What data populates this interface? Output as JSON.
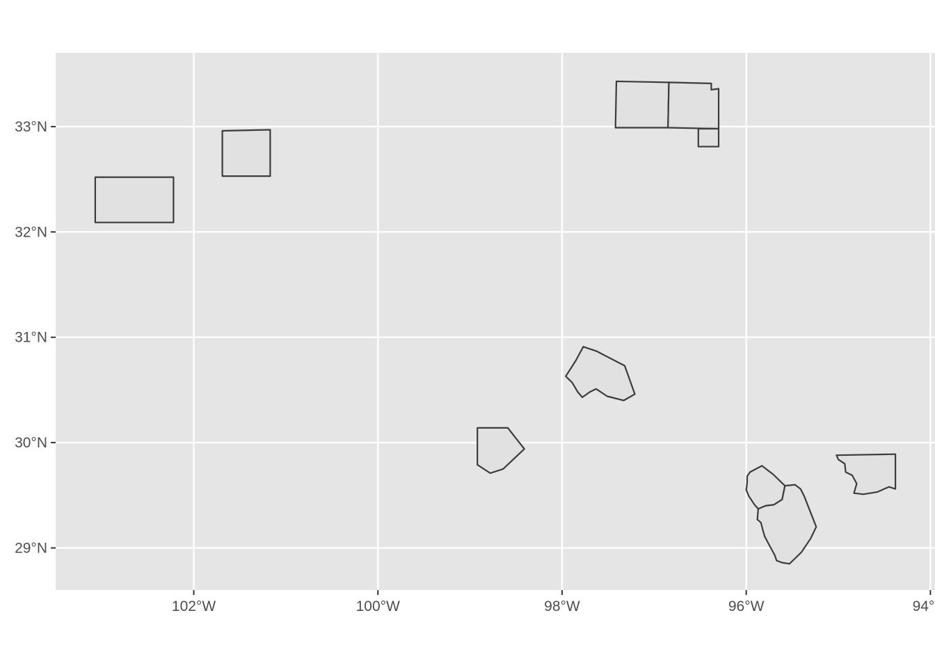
{
  "chart_data": {
    "type": "map",
    "title": "",
    "xlabel": "",
    "ylabel": "",
    "xlim": [
      -103.5,
      -93.95
    ],
    "ylim": [
      28.6,
      33.7
    ],
    "grid": true,
    "x_ticks": [
      {
        "value": -102,
        "label": "102°W"
      },
      {
        "value": -100,
        "label": "100°W"
      },
      {
        "value": -98,
        "label": "98°W"
      },
      {
        "value": -96,
        "label": "96°W"
      },
      {
        "value": -94,
        "label": "94°W"
      }
    ],
    "y_ticks": [
      {
        "value": 33,
        "label": "33°N"
      },
      {
        "value": 32,
        "label": "32°N"
      },
      {
        "value": 31,
        "label": "31°N"
      },
      {
        "value": 30,
        "label": "30°N"
      },
      {
        "value": 29,
        "label": "29°N"
      }
    ],
    "colors": {
      "fill": "#e1e1e1",
      "outline": "#3c3c3c",
      "panel": "#e5e5e5",
      "grid": "#ffffff"
    },
    "regions": [
      {
        "coords": [
          [
            -103.07,
            32.52
          ],
          [
            -102.22,
            32.52
          ],
          [
            -102.22,
            32.09
          ],
          [
            -103.07,
            32.09
          ]
        ]
      },
      {
        "coords": [
          [
            -101.69,
            32.96
          ],
          [
            -101.17,
            32.97
          ],
          [
            -101.17,
            32.53
          ],
          [
            -101.69,
            32.53
          ]
        ]
      },
      {
        "coords": [
          [
            -97.41,
            33.43
          ],
          [
            -96.84,
            33.42
          ],
          [
            -96.85,
            32.99
          ],
          [
            -97.42,
            32.99
          ]
        ]
      },
      {
        "coords": [
          [
            -96.84,
            33.42
          ],
          [
            -96.38,
            33.41
          ],
          [
            -96.38,
            33.35
          ],
          [
            -96.3,
            33.36
          ],
          [
            -96.3,
            32.98
          ],
          [
            -96.85,
            32.99
          ]
        ]
      },
      {
        "coords": [
          [
            -96.52,
            32.98
          ],
          [
            -96.3,
            32.98
          ],
          [
            -96.3,
            32.81
          ],
          [
            -96.52,
            32.81
          ]
        ]
      },
      {
        "coords": [
          [
            -97.96,
            30.63
          ],
          [
            -97.85,
            30.78
          ],
          [
            -97.77,
            30.91
          ],
          [
            -97.63,
            30.87
          ],
          [
            -97.32,
            30.73
          ],
          [
            -97.21,
            30.46
          ],
          [
            -97.33,
            30.4
          ],
          [
            -97.42,
            30.42
          ],
          [
            -97.51,
            30.44
          ],
          [
            -97.63,
            30.51
          ],
          [
            -97.7,
            30.48
          ],
          [
            -97.78,
            30.43
          ],
          [
            -97.83,
            30.48
          ],
          [
            -97.89,
            30.57
          ],
          [
            -97.95,
            30.62
          ]
        ]
      },
      {
        "coords": [
          [
            -98.92,
            30.14
          ],
          [
            -98.59,
            30.14
          ],
          [
            -98.41,
            29.94
          ],
          [
            -98.64,
            29.75
          ],
          [
            -98.78,
            29.71
          ],
          [
            -98.92,
            29.79
          ]
        ]
      },
      {
        "coords": [
          [
            -95.96,
            29.72
          ],
          [
            -95.83,
            29.78
          ],
          [
            -95.71,
            29.7
          ],
          [
            -95.58,
            29.59
          ],
          [
            -95.61,
            29.46
          ],
          [
            -95.7,
            29.41
          ],
          [
            -95.79,
            29.4
          ],
          [
            -95.87,
            29.37
          ],
          [
            -95.91,
            29.41
          ],
          [
            -95.97,
            29.49
          ],
          [
            -96.0,
            29.55
          ],
          [
            -95.99,
            29.62
          ],
          [
            -95.99,
            29.68
          ]
        ]
      },
      {
        "coords": [
          [
            -95.58,
            29.59
          ],
          [
            -95.47,
            29.6
          ],
          [
            -95.41,
            29.56
          ],
          [
            -95.37,
            29.49
          ],
          [
            -95.24,
            29.2
          ],
          [
            -95.3,
            29.09
          ],
          [
            -95.4,
            28.96
          ],
          [
            -95.53,
            28.85
          ],
          [
            -95.61,
            28.86
          ],
          [
            -95.67,
            28.88
          ],
          [
            -95.69,
            28.93
          ],
          [
            -95.77,
            29.06
          ],
          [
            -95.8,
            29.11
          ],
          [
            -95.82,
            29.17
          ],
          [
            -95.84,
            29.24
          ],
          [
            -95.88,
            29.27
          ],
          [
            -95.87,
            29.37
          ],
          [
            -95.79,
            29.4
          ],
          [
            -95.7,
            29.41
          ],
          [
            -95.61,
            29.46
          ]
        ]
      },
      {
        "coords": [
          [
            -95.02,
            29.88
          ],
          [
            -94.38,
            29.89
          ],
          [
            -94.38,
            29.56
          ],
          [
            -94.45,
            29.58
          ],
          [
            -94.58,
            29.53
          ],
          [
            -94.73,
            29.51
          ],
          [
            -94.83,
            29.52
          ],
          [
            -94.8,
            29.61
          ],
          [
            -94.85,
            29.69
          ],
          [
            -94.92,
            29.72
          ],
          [
            -94.93,
            29.8
          ],
          [
            -95.0,
            29.84
          ]
        ]
      }
    ]
  }
}
